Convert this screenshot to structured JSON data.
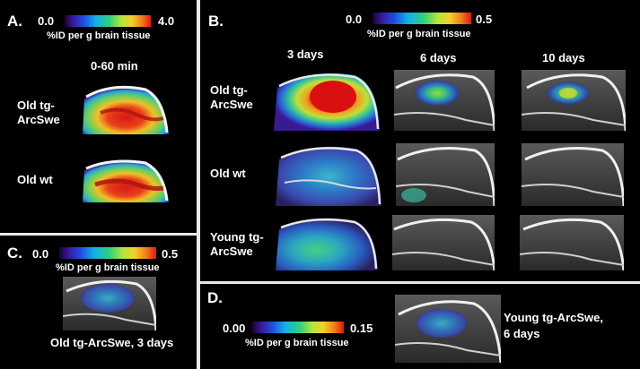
{
  "panels": {
    "a": {
      "letter": "A.",
      "scale_min": "0.0",
      "scale_max": "4.0",
      "scale_label": "%ID per g brain tissue",
      "time": "0-60 min",
      "rows": [
        {
          "label": "Old tg-ArcSwe"
        },
        {
          "label": "Old wt"
        }
      ]
    },
    "b": {
      "letter": "B.",
      "scale_min": "0.0",
      "scale_max": "0.5",
      "scale_label": "%ID per g brain tissue",
      "columns": [
        "3 days",
        "6 days",
        "10 days"
      ],
      "rows": [
        {
          "label": "Old tg-ArcSwe"
        },
        {
          "label": "Old wt"
        },
        {
          "label": "Young tg-ArcSwe"
        }
      ]
    },
    "c": {
      "letter": "C.",
      "scale_min": "0.0",
      "scale_max": "0.5",
      "scale_label": "%ID per g brain tissue",
      "caption": "Old tg-ArcSwe, 3 days"
    },
    "d": {
      "letter": "D.",
      "scale_min": "0.00",
      "scale_max": "0.15",
      "scale_label": "%ID per g brain tissue",
      "caption_line1": "Young  tg-ArcSwe,",
      "caption_line2": "6 days"
    }
  },
  "colors": {
    "separator": "#e9e9e9",
    "background": "#000000"
  }
}
